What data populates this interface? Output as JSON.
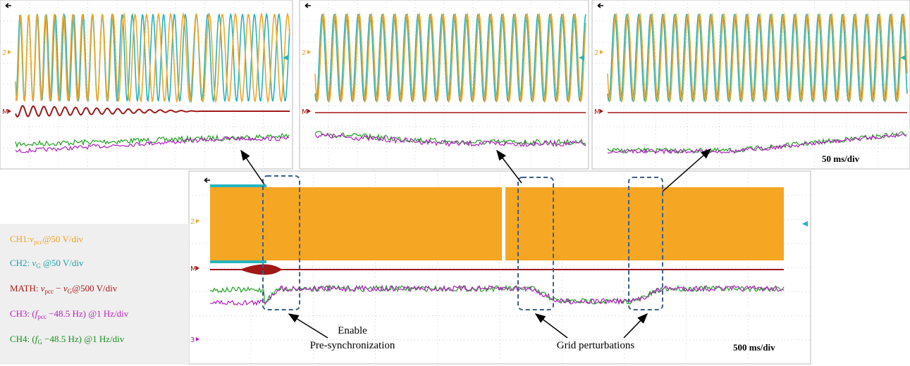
{
  "legend": [
    {
      "prefix": "CH1:",
      "var": "v",
      "sub": "pcc",
      "suffix": "@50 V/div"
    },
    {
      "prefix": "CH2: ",
      "var": "v",
      "sub": "G",
      "suffix": " @50 V/div"
    },
    {
      "prefix": "MATH: ",
      "var": "v",
      "sub": "pcc",
      "mid": " − ",
      "var2": "v",
      "sub2": "G",
      "suffix": "@500 V/div"
    },
    {
      "prefix": "CH3: (",
      "var": "f",
      "sub": "pcc",
      "suffix": " −48.5 Hz) @1 Hz/div"
    },
    {
      "prefix": "CH4: (",
      "var": "f",
      "sub": "G",
      "suffix": " −48.5 Hz) @1 Hz/div"
    }
  ],
  "annotations": {
    "enable_line1": "Enable",
    "enable_line2": "Pre-synchronization",
    "grid": "Grid perturbations"
  },
  "scales": {
    "top": "50 ms/div",
    "bottom": "500 ms/div"
  },
  "markers": {
    "ch2": "2",
    "math": "M",
    "ch3": "3"
  }
}
